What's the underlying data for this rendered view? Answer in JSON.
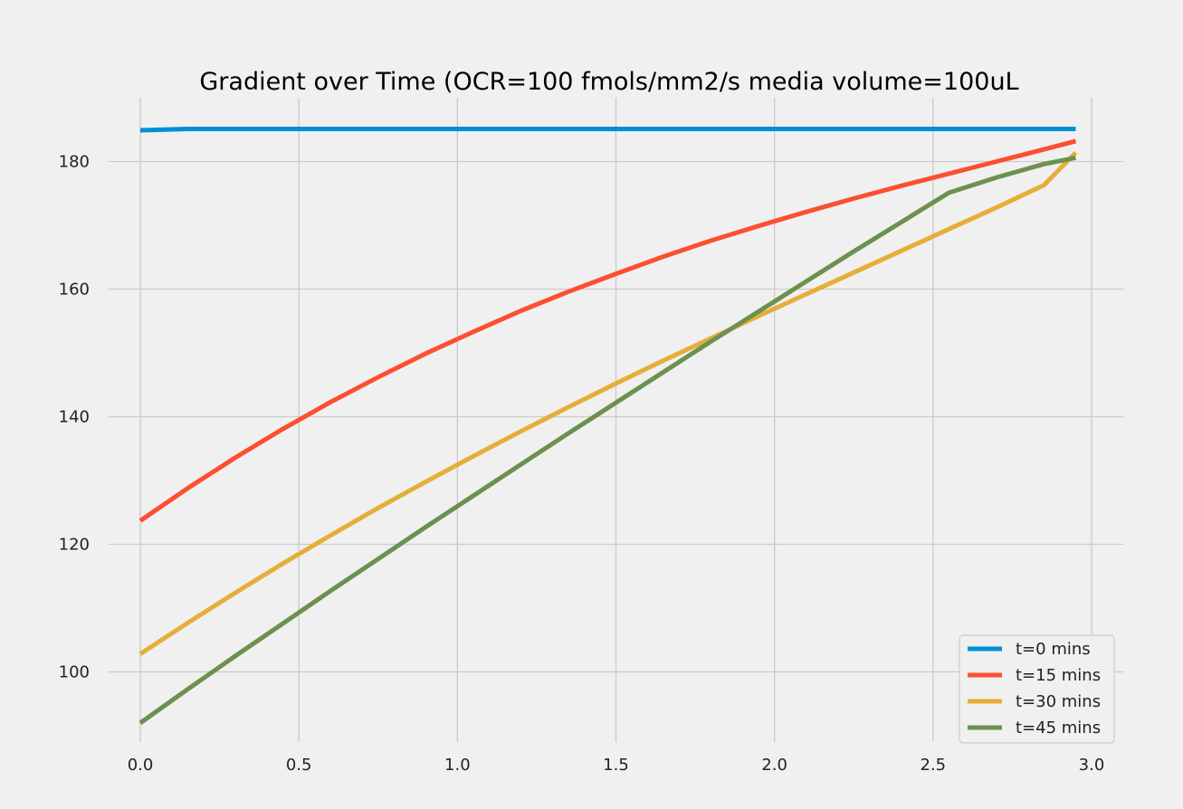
{
  "chart_data": {
    "type": "line",
    "title": "Gradient over Time (OCR=100 fmols/mm2/s  media volume=100uL",
    "xlabel": "",
    "ylabel": "",
    "xlim": [
      -0.1,
      3.1
    ],
    "ylim": [
      89,
      190
    ],
    "xticks": [
      0.0,
      0.5,
      1.0,
      1.5,
      2.0,
      2.5,
      3.0
    ],
    "xtick_labels": [
      "0.0",
      "0.5",
      "1.0",
      "1.5",
      "2.0",
      "2.5",
      "3.0"
    ],
    "yticks": [
      100,
      120,
      140,
      160,
      180
    ],
    "ytick_labels": [
      "100",
      "120",
      "140",
      "160",
      "180"
    ],
    "grid": true,
    "legend_position": "bottom-right",
    "background": "#f0f0f0",
    "x": [
      0.0,
      0.15,
      0.3,
      0.45,
      0.6,
      0.75,
      0.9,
      1.05,
      1.2,
      1.35,
      1.5,
      1.65,
      1.8,
      1.95,
      2.1,
      2.25,
      2.4,
      2.55,
      2.7,
      2.85,
      2.95
    ],
    "series": [
      {
        "name": "t=0 mins",
        "color": "#008fd5",
        "values": [
          184.9,
          185.1,
          185.1,
          185.1,
          185.1,
          185.1,
          185.1,
          185.1,
          185.1,
          185.1,
          185.1,
          185.1,
          185.1,
          185.1,
          185.1,
          185.1,
          185.1,
          185.1,
          185.1,
          185.1,
          185.1
        ]
      },
      {
        "name": "t=15 mins",
        "color": "#fc4f30",
        "values": [
          123.7,
          128.8,
          133.6,
          138.1,
          142.3,
          146.2,
          149.9,
          153.3,
          156.6,
          159.6,
          162.4,
          165.1,
          167.6,
          169.9,
          172.1,
          174.2,
          176.2,
          178.1,
          180.0,
          181.9,
          183.2
        ]
      },
      {
        "name": "t=30 mins",
        "color": "#e5ae38",
        "values": [
          102.8,
          107.7,
          112.4,
          117.0,
          121.4,
          125.7,
          129.8,
          133.8,
          137.7,
          141.5,
          145.2,
          148.8,
          152.3,
          155.8,
          159.2,
          162.6,
          166.0,
          169.4,
          172.8,
          176.3,
          181.4
        ]
      },
      {
        "name": "t=45 mins",
        "color": "#6d904f",
        "values": [
          92.0,
          97.3,
          102.5,
          107.6,
          112.7,
          117.7,
          122.7,
          127.6,
          132.5,
          137.4,
          142.2,
          147.0,
          151.8,
          156.5,
          161.2,
          165.9,
          170.5,
          175.1,
          177.5,
          179.6,
          180.6
        ]
      }
    ]
  }
}
